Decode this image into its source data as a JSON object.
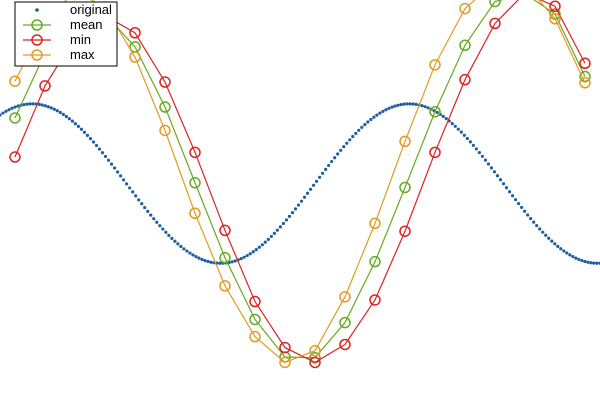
{
  "chart_data": {
    "type": "line",
    "title": "",
    "xlabel": "",
    "ylabel": "",
    "xlim": [
      0,
      20
    ],
    "ylim": [
      -2.95,
      2.35
    ],
    "grid": false,
    "axes_visible": false,
    "legend": {
      "placement": "top-left",
      "entries": [
        "original",
        "mean",
        "min",
        "max"
      ]
    },
    "original": {
      "name": "original",
      "color": "#1f5f9f",
      "style": "dotted",
      "function": "sin(x/2) + cos(x/2 + 0.5)",
      "x_range": [
        0,
        20
      ],
      "num_points": 200
    },
    "x": [
      0.5,
      1.5,
      2.5,
      3.5,
      4.5,
      5.5,
      6.5,
      7.5,
      8.5,
      9.5,
      10.5,
      11.5,
      12.5,
      13.5,
      14.5,
      15.5,
      16.5,
      17.5,
      18.5,
      19.5
    ],
    "series": [
      {
        "name": "mean",
        "color": "#66aa22",
        "marker": "circle",
        "values": [
          0.84,
          1.67,
          2.15,
          2.17,
          1.75,
          0.98,
          0.01,
          -0.95,
          -1.74,
          -2.22,
          -2.23,
          -1.78,
          -1.0,
          -0.05,
          0.92,
          1.77,
          2.33,
          2.43,
          2.17,
          1.37
        ]
      },
      {
        "name": "min",
        "color": "#dd2222",
        "marker": "circle",
        "values": [
          0.34,
          1.25,
          1.87,
          2.15,
          1.93,
          1.3,
          0.4,
          -0.6,
          -1.51,
          -2.1,
          -2.29,
          -2.06,
          -1.49,
          -0.61,
          0.4,
          1.33,
          2.05,
          2.44,
          2.27,
          1.54
        ]
      },
      {
        "name": "max",
        "color": "#e39a22",
        "marker": "circle",
        "values": [
          1.31,
          2.07,
          2.46,
          2.26,
          1.62,
          0.68,
          -0.38,
          -1.31,
          -1.96,
          -2.29,
          -2.14,
          -1.45,
          -0.51,
          0.54,
          1.52,
          2.24,
          2.58,
          2.55,
          2.11,
          1.29
        ]
      }
    ]
  }
}
